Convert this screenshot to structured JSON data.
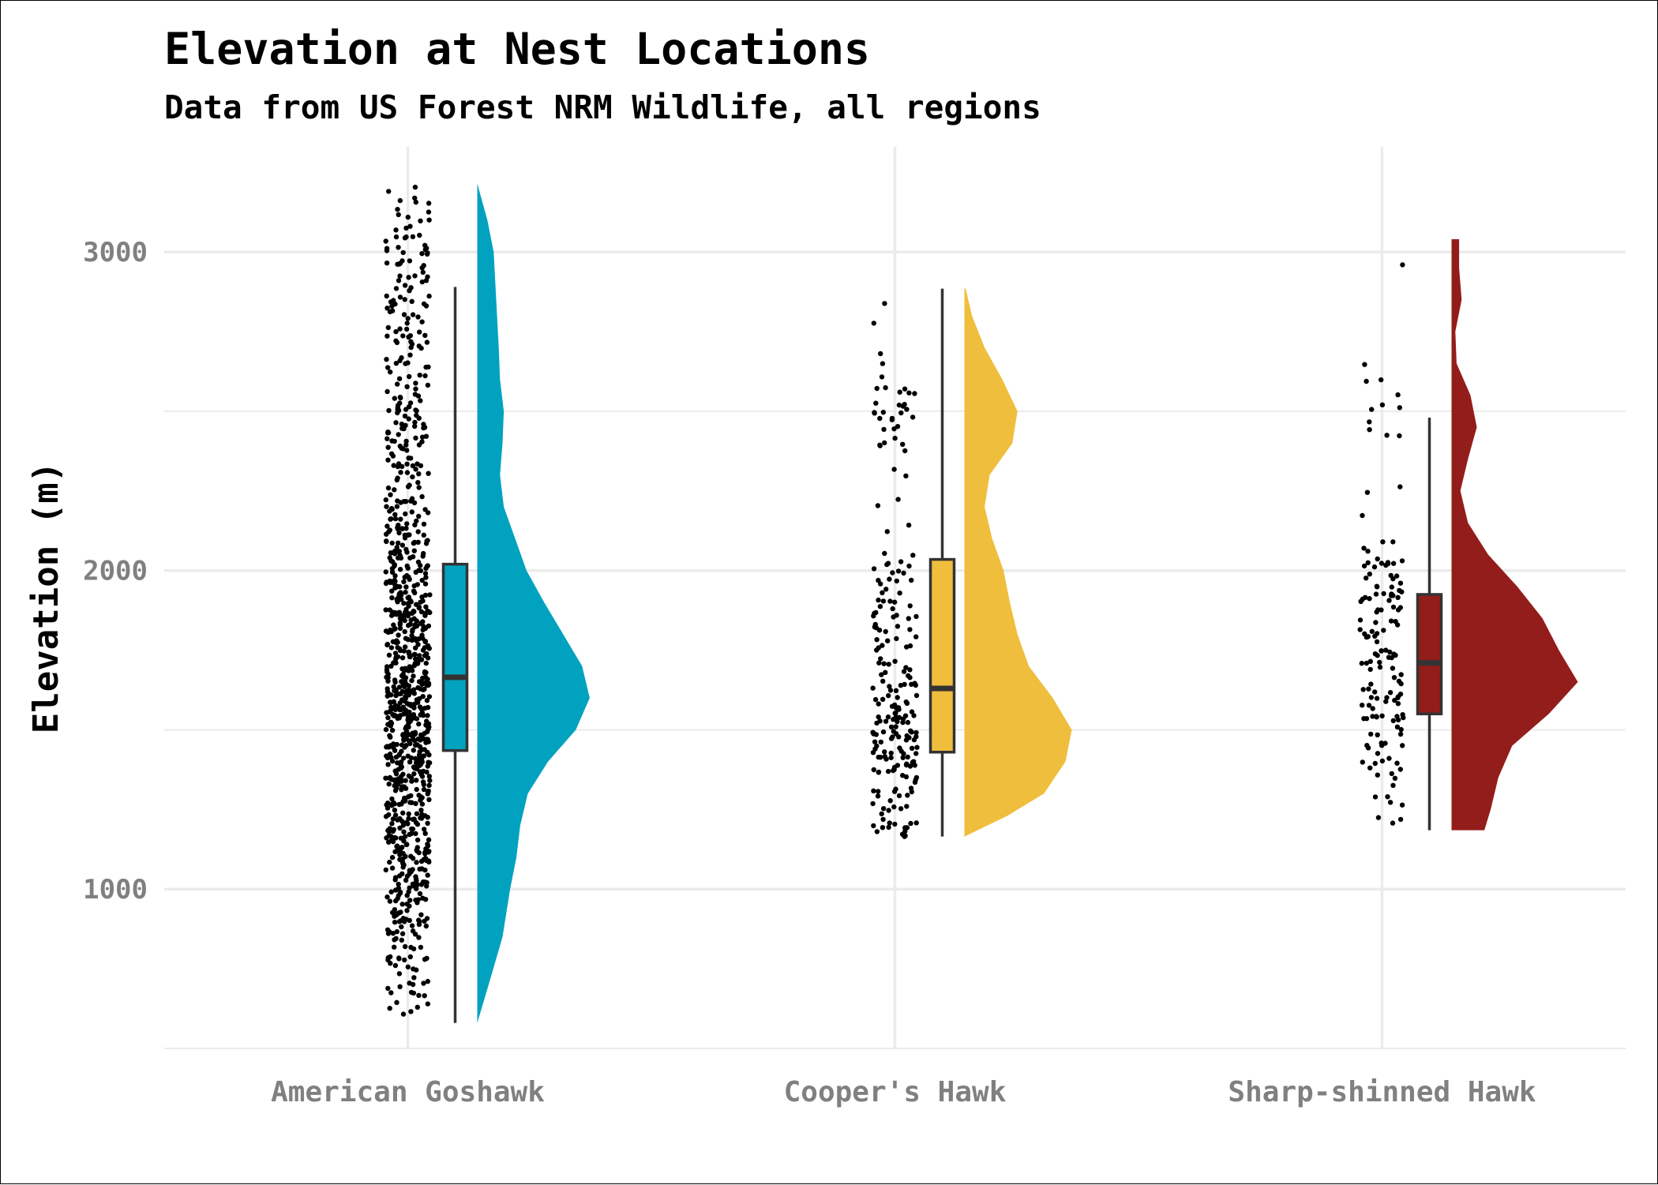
{
  "chart_data": {
    "type": "raincloud",
    "title": "Elevation at Nest Locations",
    "subtitle": "Data from US Forest NRM Wildlife, all regions",
    "xlabel": "",
    "ylabel": "Elevation (m)",
    "ylim": [
      500,
      3330
    ],
    "y_ticks": [
      1000,
      2000,
      3000
    ],
    "y_tick_labels": [
      "1000",
      "2000",
      "3000"
    ],
    "grid": true,
    "legend": "none",
    "categories": [
      "American Goshawk",
      "Cooper's Hawk",
      "Sharp-shinned Hawk"
    ],
    "series": [
      {
        "category": "American Goshawk",
        "color": "#01A2BF",
        "point_count": 1000,
        "box": {
          "min": 580,
          "q1": 1435,
          "median": 1665,
          "q3": 2020,
          "max": 2890
        },
        "density_range": [
          580,
          3215
        ],
        "density": [
          [
            580,
            0.0
          ],
          [
            700,
            0.09
          ],
          [
            850,
            0.2
          ],
          [
            1000,
            0.26
          ],
          [
            1100,
            0.31
          ],
          [
            1200,
            0.34
          ],
          [
            1300,
            0.4
          ],
          [
            1400,
            0.56
          ],
          [
            1500,
            0.78
          ],
          [
            1600,
            0.89
          ],
          [
            1700,
            0.83
          ],
          [
            1800,
            0.68
          ],
          [
            1900,
            0.53
          ],
          [
            2000,
            0.39
          ],
          [
            2100,
            0.3
          ],
          [
            2200,
            0.21
          ],
          [
            2300,
            0.18
          ],
          [
            2400,
            0.2
          ],
          [
            2500,
            0.21
          ],
          [
            2600,
            0.18
          ],
          [
            2700,
            0.17
          ],
          [
            2850,
            0.15
          ],
          [
            3000,
            0.13
          ],
          [
            3100,
            0.08
          ],
          [
            3215,
            0.0
          ]
        ],
        "point_density": [
          [
            580,
            0.05
          ],
          [
            800,
            0.3
          ],
          [
            1000,
            0.55
          ],
          [
            1200,
            0.6
          ],
          [
            1300,
            0.7
          ],
          [
            1400,
            0.85
          ],
          [
            1550,
            1.0
          ],
          [
            1700,
            0.95
          ],
          [
            1850,
            0.8
          ],
          [
            2000,
            0.6
          ],
          [
            2150,
            0.4
          ],
          [
            2300,
            0.3
          ],
          [
            2450,
            0.32
          ],
          [
            2600,
            0.28
          ],
          [
            2800,
            0.25
          ],
          [
            3000,
            0.22
          ],
          [
            3100,
            0.15
          ],
          [
            3215,
            0.05
          ]
        ]
      },
      {
        "category": "Cooper's Hawk",
        "color": "#F0BE3D",
        "point_count": 230,
        "box": {
          "min": 1165,
          "q1": 1430,
          "median": 1630,
          "q3": 2035,
          "max": 2885
        },
        "density_range": [
          1165,
          2885
        ],
        "density": [
          [
            1165,
            0.0
          ],
          [
            1230,
            0.34
          ],
          [
            1300,
            0.63
          ],
          [
            1400,
            0.8
          ],
          [
            1500,
            0.85
          ],
          [
            1600,
            0.7
          ],
          [
            1700,
            0.51
          ],
          [
            1800,
            0.42
          ],
          [
            1900,
            0.36
          ],
          [
            2000,
            0.31
          ],
          [
            2100,
            0.22
          ],
          [
            2200,
            0.16
          ],
          [
            2300,
            0.2
          ],
          [
            2400,
            0.38
          ],
          [
            2500,
            0.42
          ],
          [
            2600,
            0.3
          ],
          [
            2700,
            0.16
          ],
          [
            2800,
            0.06
          ],
          [
            2885,
            0.01
          ]
        ],
        "point_density": [
          [
            1165,
            0.25
          ],
          [
            1250,
            0.7
          ],
          [
            1350,
            1.0
          ],
          [
            1450,
            1.0
          ],
          [
            1550,
            0.95
          ],
          [
            1650,
            0.7
          ],
          [
            1750,
            0.5
          ],
          [
            1850,
            0.45
          ],
          [
            1950,
            0.4
          ],
          [
            2050,
            0.3
          ],
          [
            2150,
            0.1
          ],
          [
            2250,
            0.05
          ],
          [
            2350,
            0.15
          ],
          [
            2420,
            0.35
          ],
          [
            2500,
            0.55
          ],
          [
            2560,
            0.3
          ],
          [
            2650,
            0.03
          ],
          [
            2830,
            0.03
          ],
          [
            2885,
            0.02
          ]
        ]
      },
      {
        "category": "Sharp-shinned Hawk",
        "color": "#931D1A",
        "point_count": 150,
        "box": {
          "min": 1185,
          "q1": 1550,
          "median": 1710,
          "q3": 1925,
          "max": 2480
        },
        "density_range": [
          1185,
          3040
        ],
        "density": [
          [
            1185,
            0.26
          ],
          [
            1250,
            0.31
          ],
          [
            1350,
            0.37
          ],
          [
            1450,
            0.48
          ],
          [
            1550,
            0.77
          ],
          [
            1650,
            1.0
          ],
          [
            1750,
            0.85
          ],
          [
            1850,
            0.72
          ],
          [
            1950,
            0.52
          ],
          [
            2050,
            0.29
          ],
          [
            2150,
            0.13
          ],
          [
            2250,
            0.07
          ],
          [
            2350,
            0.13
          ],
          [
            2450,
            0.2
          ],
          [
            2550,
            0.15
          ],
          [
            2650,
            0.04
          ],
          [
            2750,
            0.03
          ],
          [
            2850,
            0.08
          ],
          [
            2950,
            0.06
          ],
          [
            3040,
            0.06
          ]
        ],
        "point_density": [
          [
            1185,
            0.35
          ],
          [
            1300,
            0.4
          ],
          [
            1450,
            0.6
          ],
          [
            1600,
            0.85
          ],
          [
            1750,
            1.0
          ],
          [
            1900,
            0.85
          ],
          [
            2050,
            0.55
          ],
          [
            2150,
            0.1
          ],
          [
            2250,
            0.08
          ],
          [
            2350,
            0.05
          ],
          [
            2450,
            0.25
          ],
          [
            2550,
            0.2
          ],
          [
            2700,
            0.02
          ],
          [
            2900,
            0.1
          ],
          [
            3040,
            0.08
          ]
        ]
      }
    ]
  }
}
